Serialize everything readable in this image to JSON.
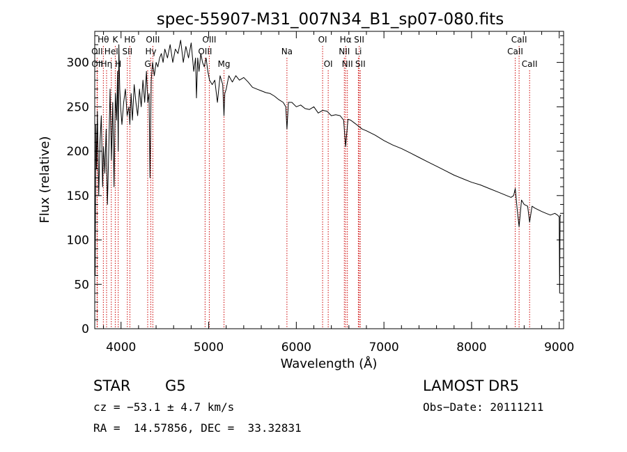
{
  "chart_data": {
    "type": "line",
    "title": "spec-55907-M31_007N34_B1_sp07-080.fits",
    "xlabel": "Wavelength (Å)",
    "ylabel": "Flux (relative)",
    "xlim": [
      3700,
      9050
    ],
    "ylim": [
      0,
      335
    ],
    "xticks": [
      4000,
      5000,
      6000,
      7000,
      8000,
      9000
    ],
    "yticks": [
      0,
      50,
      100,
      150,
      200,
      250,
      300
    ],
    "grid": false,
    "line_color": "#000000",
    "marker_color": "#cc0000",
    "series": [
      {
        "x": [
          3705,
          3712,
          3720,
          3730,
          3745,
          3760,
          3775,
          3790,
          3800,
          3815,
          3830,
          3845,
          3860,
          3875,
          3890,
          3905,
          3920,
          3935,
          3950,
          3960,
          3968,
          3975,
          3985,
          3995,
          4010,
          4030,
          4050,
          4070,
          4090,
          4101,
          4115,
          4130,
          4150,
          4170,
          4190,
          4210,
          4230,
          4250,
          4270,
          4290,
          4305,
          4320,
          4330,
          4345,
          4360,
          4380,
          4400,
          4420,
          4440,
          4460,
          4480,
          4500,
          4530,
          4560,
          4590,
          4620,
          4650,
          4680,
          4710,
          4740,
          4770,
          4800,
          4830,
          4850,
          4861,
          4875,
          4890,
          4910,
          4930,
          4950,
          4970,
          4990,
          5010,
          5040,
          5070,
          5100,
          5130,
          5160,
          5175,
          5184,
          5200,
          5230,
          5270,
          5310,
          5350,
          5400,
          5450,
          5500,
          5550,
          5600,
          5650,
          5700,
          5750,
          5800,
          5850,
          5880,
          5893,
          5910,
          5950,
          6000,
          6050,
          6100,
          6150,
          6200,
          6250,
          6300,
          6350,
          6400,
          6450,
          6500,
          6540,
          6563,
          6590,
          6620,
          6660,
          6700,
          6750,
          6800,
          6900,
          7000,
          7100,
          7200,
          7300,
          7400,
          7500,
          7600,
          7700,
          7800,
          7900,
          8000,
          8100,
          8200,
          8300,
          8400,
          8450,
          8480,
          8498,
          8520,
          8542,
          8570,
          8600,
          8640,
          8662,
          8690,
          8720,
          8760,
          8800,
          8850,
          8900,
          8950,
          8980,
          9000,
          9005,
          9010,
          9020
        ],
        "y": [
          60,
          230,
          180,
          245,
          150,
          210,
          240,
          160,
          205,
          175,
          225,
          140,
          200,
          270,
          190,
          255,
          160,
          265,
          235,
          290,
          200,
          320,
          270,
          250,
          230,
          255,
          270,
          240,
          250,
          230,
          265,
          235,
          275,
          255,
          240,
          270,
          250,
          280,
          255,
          290,
          255,
          265,
          170,
          280,
          300,
          285,
          300,
          295,
          305,
          310,
          300,
          315,
          305,
          320,
          300,
          315,
          310,
          325,
          300,
          318,
          305,
          322,
          290,
          305,
          260,
          305,
          290,
          310,
          300,
          295,
          305,
          290,
          280,
          275,
          280,
          255,
          285,
          275,
          240,
          265,
          270,
          285,
          278,
          285,
          280,
          283,
          278,
          272,
          270,
          268,
          266,
          265,
          262,
          258,
          255,
          250,
          225,
          255,
          255,
          250,
          252,
          248,
          247,
          250,
          243,
          246,
          245,
          240,
          241,
          240,
          235,
          205,
          236,
          235,
          232,
          229,
          225,
          223,
          218,
          212,
          207,
          203,
          198,
          193,
          188,
          183,
          178,
          173,
          169,
          165,
          162,
          158,
          154,
          150,
          148,
          150,
          158,
          135,
          115,
          145,
          140,
          138,
          120,
          138,
          136,
          134,
          132,
          130,
          128,
          130,
          128,
          126,
          40,
          128,
          127
        ]
      }
    ],
    "annotations": [
      {
        "label": "Hθ",
        "x": 3798,
        "row": 1
      },
      {
        "label": "OII",
        "x": 3727,
        "row": 2
      },
      {
        "label": "OII",
        "x": 3729,
        "row": 3
      },
      {
        "label": "HeI",
        "x": 3889,
        "row": 2
      },
      {
        "label": "Hη",
        "x": 3835,
        "row": 3
      },
      {
        "label": "K",
        "x": 3934,
        "row": 1
      },
      {
        "label": "H",
        "x": 3968,
        "row": 3
      },
      {
        "label": "Hδ",
        "x": 4101,
        "row": 1
      },
      {
        "label": "SII",
        "x": 4072,
        "row": 2
      },
      {
        "label": "OIII",
        "x": 4363,
        "row": 1
      },
      {
        "label": "Hγ",
        "x": 4340,
        "row": 2
      },
      {
        "label": "G",
        "x": 4304,
        "row": 3
      },
      {
        "label": "OIII",
        "x": 5007,
        "row": 1
      },
      {
        "label": "OIII",
        "x": 4959,
        "row": 2
      },
      {
        "label": "Mg",
        "x": 5175,
        "row": 3
      },
      {
        "label": "Na",
        "x": 5893,
        "row": 2
      },
      {
        "label": "OI",
        "x": 6300,
        "row": 1
      },
      {
        "label": "OI",
        "x": 6364,
        "row": 3
      },
      {
        "label": "Hα",
        "x": 6563,
        "row": 1
      },
      {
        "label": "SII",
        "x": 6717,
        "row": 1
      },
      {
        "label": "NII",
        "x": 6548,
        "row": 2
      },
      {
        "label": "Li",
        "x": 6708,
        "row": 2
      },
      {
        "label": "NII",
        "x": 6583,
        "row": 3
      },
      {
        "label": "SII",
        "x": 6731,
        "row": 3
      },
      {
        "label": "CaII",
        "x": 8542,
        "row": 1
      },
      {
        "label": "CaII",
        "x": 8498,
        "row": 2
      },
      {
        "label": "CaII",
        "x": 8662,
        "row": 3
      }
    ]
  },
  "info": {
    "object_class": "STAR",
    "subclass": "G5",
    "survey": "LAMOST DR5",
    "cz": "cz = −53.1 ± 4.7 km/s",
    "obs_date": "Obs−Date: 20111211",
    "coords": "RA =  14.57856, DEC =  33.32831"
  }
}
